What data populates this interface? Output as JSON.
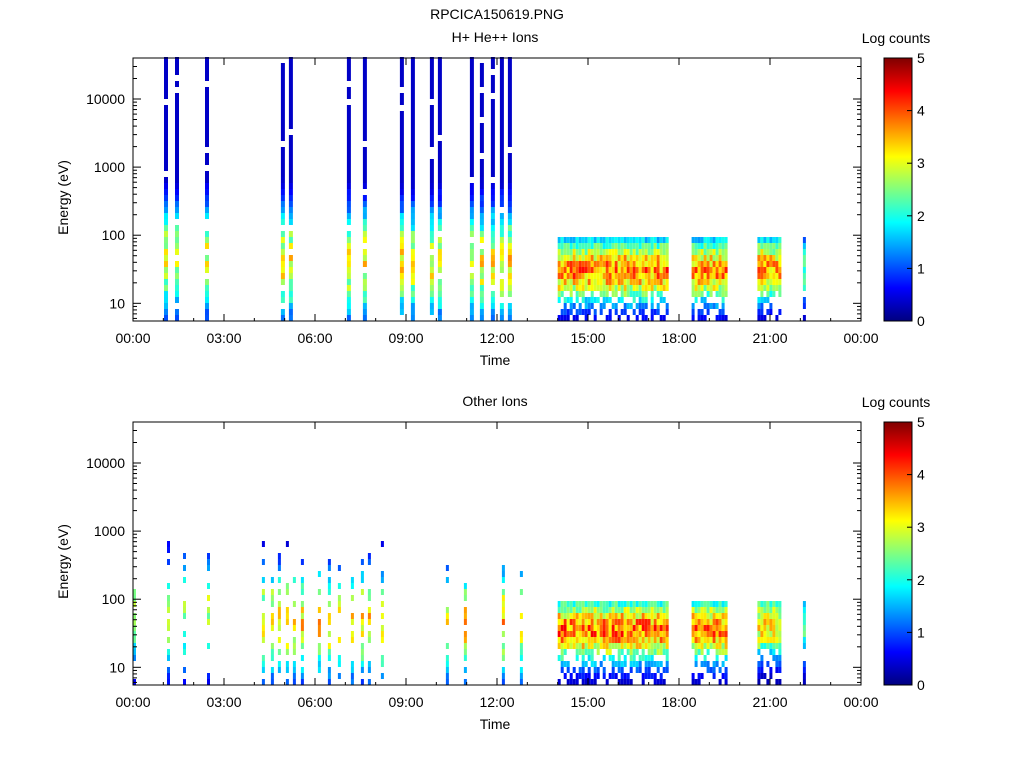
{
  "figure_title": "RPCICA150619.PNG",
  "colorbar_ticks": [
    "0",
    "1",
    "2",
    "3",
    "4",
    "5"
  ],
  "colors": {
    "background": "#ffffff",
    "axis": "#000000",
    "colormap": [
      "#00007f",
      "#0000ff",
      "#0080ff",
      "#00ffff",
      "#80ff80",
      "#ffff00",
      "#ff8000",
      "#ff0000",
      "#7f0000"
    ]
  },
  "chart_data": [
    {
      "type": "heatmap",
      "title": "H+ He++ Ions",
      "xlabel": "Time",
      "ylabel": "Energy (eV)",
      "colorbar_label": "Log counts",
      "x_ticks": [
        "00:00",
        "03:00",
        "06:00",
        "09:00",
        "12:00",
        "15:00",
        "18:00",
        "21:00",
        "00:00"
      ],
      "y_ticks": [
        "10",
        "100",
        "1000",
        "10000"
      ],
      "xlim_hours": [
        0,
        24
      ],
      "ylim_eV": [
        5.5,
        40000
      ],
      "yscale": "log",
      "clim": [
        0,
        5
      ],
      "segments": [
        {
          "start": "00:00",
          "end": "02:35",
          "pattern": "striped",
          "emax_eV": 40000,
          "peak_eV": 45,
          "peak_log_counts": 3.2
        },
        {
          "start": "04:15",
          "end": "12:50",
          "pattern": "striped",
          "emax_eV": 40000,
          "peak_eV": 40,
          "peak_log_counts": 3.4
        },
        {
          "start": "14:00",
          "end": "17:35",
          "pattern": "dense",
          "emax_eV": 100,
          "peak_eV": 30,
          "peak_log_counts": 4.0
        },
        {
          "start": "18:25",
          "end": "19:35",
          "pattern": "dense",
          "emax_eV": 100,
          "peak_eV": 30,
          "peak_log_counts": 3.9
        },
        {
          "start": "20:35",
          "end": "21:20",
          "pattern": "dense",
          "emax_eV": 100,
          "peak_eV": 32,
          "peak_log_counts": 3.8
        },
        {
          "start": "22:05",
          "end": "22:10",
          "pattern": "dense",
          "emax_eV": 100,
          "peak_eV": 30,
          "peak_log_counts": 2.5
        }
      ]
    },
    {
      "type": "heatmap",
      "title": "Other Ions",
      "xlabel": "Time",
      "ylabel": "Energy (eV)",
      "colorbar_label": "Log counts",
      "x_ticks": [
        "00:00",
        "03:00",
        "06:00",
        "09:00",
        "12:00",
        "15:00",
        "18:00",
        "21:00",
        "00:00"
      ],
      "y_ticks": [
        "10",
        "100",
        "1000",
        "10000"
      ],
      "xlim_hours": [
        0,
        24
      ],
      "ylim_eV": [
        5.5,
        40000
      ],
      "yscale": "log",
      "clim": [
        0,
        5
      ],
      "segments": [
        {
          "start": "00:00",
          "end": "02:35",
          "pattern": "sparse",
          "emax_eV": 800,
          "peak_eV": 60,
          "peak_log_counts": 3.0
        },
        {
          "start": "04:15",
          "end": "12:50",
          "pattern": "sparse",
          "emax_eV": 800,
          "peak_eV": 45,
          "peak_log_counts": 3.6
        },
        {
          "start": "14:00",
          "end": "17:35",
          "pattern": "dense",
          "emax_eV": 100,
          "peak_eV": 35,
          "peak_log_counts": 4.1
        },
        {
          "start": "18:25",
          "end": "19:35",
          "pattern": "dense",
          "emax_eV": 100,
          "peak_eV": 35,
          "peak_log_counts": 4.0
        },
        {
          "start": "20:35",
          "end": "21:20",
          "pattern": "dense",
          "emax_eV": 100,
          "peak_eV": 40,
          "peak_log_counts": 3.5
        },
        {
          "start": "22:05",
          "end": "22:10",
          "pattern": "dense",
          "emax_eV": 100,
          "peak_eV": 35,
          "peak_log_counts": 2.5
        }
      ]
    }
  ]
}
